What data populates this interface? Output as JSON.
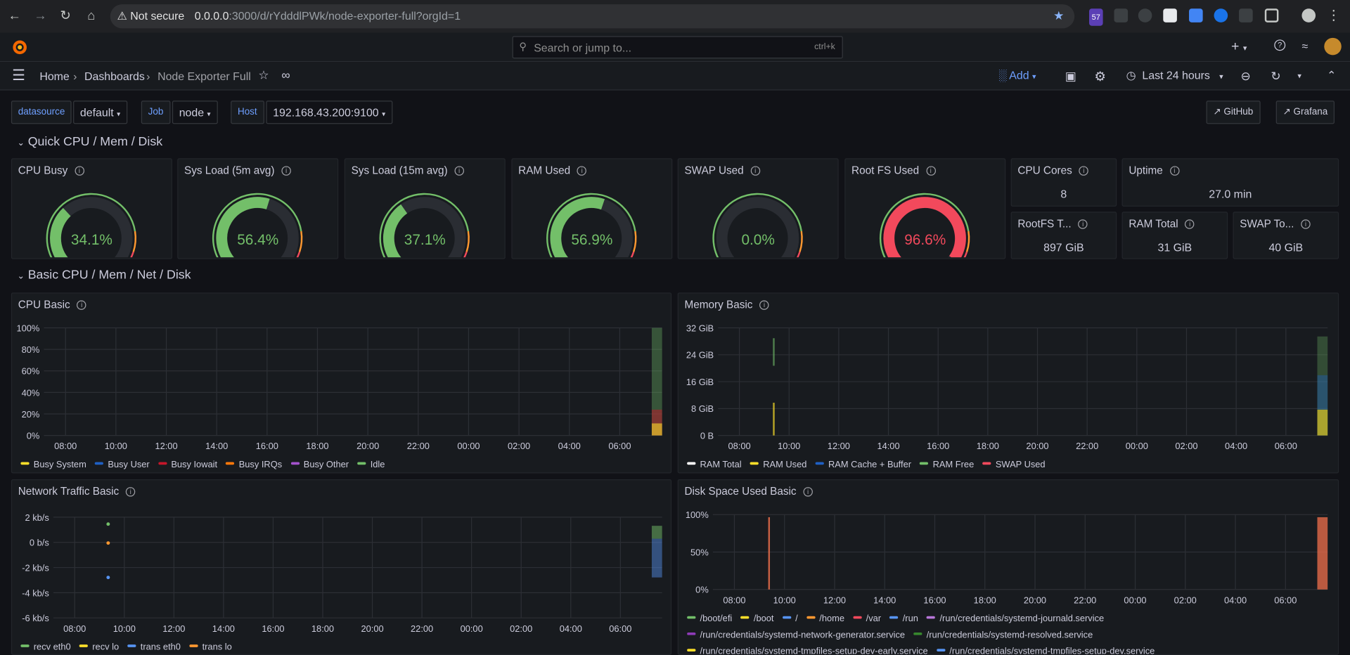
{
  "browser": {
    "security": "Not secure",
    "url_host": "0.0.0.0",
    "url_path": ":3000/d/rYdddlPWk/node-exporter-full?orgId=1",
    "badge": "57"
  },
  "topbar": {
    "search_placeholder": "Search or jump to...",
    "search_shortcut": "ctrl+k"
  },
  "breadcrumb": {
    "home": "Home",
    "dashboards": "Dashboards",
    "current": "Node Exporter Full"
  },
  "toolbar": {
    "add": "Add",
    "time_range": "Last 24 hours"
  },
  "variables": {
    "datasource_label": "datasource",
    "datasource_value": "default",
    "job_label": "Job",
    "job_value": "node",
    "host_label": "Host",
    "host_value": "192.168.43.200:9100"
  },
  "links": {
    "github": "GitHub",
    "grafana": "Grafana"
  },
  "rows": {
    "quick": "Quick CPU / Mem / Disk",
    "basic": "Basic CPU / Mem / Net / Disk"
  },
  "gauges": [
    {
      "title": "CPU Busy",
      "value": "34.1%",
      "pct": 34.1,
      "color": "#73bf69"
    },
    {
      "title": "Sys Load (5m avg)",
      "value": "56.4%",
      "pct": 56.4,
      "color": "#73bf69"
    },
    {
      "title": "Sys Load (15m avg)",
      "value": "37.1%",
      "pct": 37.1,
      "color": "#73bf69"
    },
    {
      "title": "RAM Used",
      "value": "56.9%",
      "pct": 56.9,
      "color": "#73bf69"
    },
    {
      "title": "SWAP Used",
      "value": "0.0%",
      "pct": 0,
      "color": "#73bf69"
    },
    {
      "title": "Root FS Used",
      "value": "96.6%",
      "pct": 96.6,
      "color": "#f2495c"
    }
  ],
  "stats": {
    "cpu_cores": {
      "title": "CPU Cores",
      "value": "8"
    },
    "uptime": {
      "title": "Uptime",
      "value": "27.0 min"
    },
    "rootfs_total": {
      "title": "RootFS T...",
      "value": "897 GiB"
    },
    "ram_total": {
      "title": "RAM Total",
      "value": "31 GiB"
    },
    "swap_total": {
      "title": "SWAP To...",
      "value": "40 GiB"
    }
  },
  "x_ticks": [
    "08:00",
    "10:00",
    "12:00",
    "14:00",
    "16:00",
    "18:00",
    "20:00",
    "22:00",
    "00:00",
    "02:00",
    "04:00",
    "06:00"
  ],
  "panels": {
    "cpu_basic": {
      "title": "CPU Basic",
      "y_ticks": [
        "100%",
        "80%",
        "60%",
        "40%",
        "20%",
        "0%"
      ],
      "legend": [
        {
          "name": "Busy System",
          "color": "#fade2a"
        },
        {
          "name": "Busy User",
          "color": "#1f60c4"
        },
        {
          "name": "Busy Iowait",
          "color": "#c4162a"
        },
        {
          "name": "Busy IRQs",
          "color": "#ff780a"
        },
        {
          "name": "Busy Other",
          "color": "#a352cc"
        },
        {
          "name": "Idle",
          "color": "#73bf69"
        }
      ]
    },
    "memory_basic": {
      "title": "Memory Basic",
      "y_ticks": [
        "32 GiB",
        "24 GiB",
        "16 GiB",
        "8 GiB",
        "0 B"
      ],
      "legend": [
        {
          "name": "RAM Total",
          "color": "#ffffff"
        },
        {
          "name": "RAM Used",
          "color": "#fade2a"
        },
        {
          "name": "RAM Cache + Buffer",
          "color": "#1f60c4"
        },
        {
          "name": "RAM Free",
          "color": "#73bf69"
        },
        {
          "name": "SWAP Used",
          "color": "#f2495c"
        }
      ]
    },
    "network_basic": {
      "title": "Network Traffic Basic",
      "y_ticks": [
        "2 kb/s",
        "0 b/s",
        "-2 kb/s",
        "-4 kb/s",
        "-6 kb/s"
      ],
      "legend": [
        {
          "name": "recv eth0",
          "color": "#73bf69"
        },
        {
          "name": "recv lo",
          "color": "#fade2a"
        },
        {
          "name": "trans eth0",
          "color": "#5794f2"
        },
        {
          "name": "trans lo",
          "color": "#ff9830"
        }
      ]
    },
    "disk_basic": {
      "title": "Disk Space Used Basic",
      "y_ticks": [
        "100%",
        "50%",
        "0%"
      ],
      "legend": [
        {
          "name": "/boot/efi",
          "color": "#73bf69"
        },
        {
          "name": "/boot",
          "color": "#fade2a"
        },
        {
          "name": "/",
          "color": "#5794f2"
        },
        {
          "name": "/home",
          "color": "#ff9830"
        },
        {
          "name": "/var",
          "color": "#f2495c"
        },
        {
          "name": "/run",
          "color": "#5794f2"
        },
        {
          "name": "/run/credentials/systemd-journald.service",
          "color": "#b877d9"
        },
        {
          "name": "/run/credentials/systemd-network-generator.service",
          "color": "#8f3bb8"
        },
        {
          "name": "/run/credentials/systemd-resolved.service",
          "color": "#37872d"
        },
        {
          "name": "/run/credentials/systemd-tmpfiles-setup-dev-early.service",
          "color": "#fade2a"
        },
        {
          "name": "/run/credentials/systemd-tmpfiles-setup-dev.service",
          "color": "#5794f2"
        }
      ]
    }
  },
  "chart_data": {
    "type": "gauge",
    "title": "Quick CPU / Mem / Disk",
    "categories": [
      "CPU Busy",
      "Sys Load (5m avg)",
      "Sys Load (15m avg)",
      "RAM Used",
      "SWAP Used",
      "Root FS Used"
    ],
    "values": [
      34.1,
      56.4,
      37.1,
      56.9,
      0.0,
      96.6
    ],
    "ylim": [
      0,
      100
    ]
  }
}
